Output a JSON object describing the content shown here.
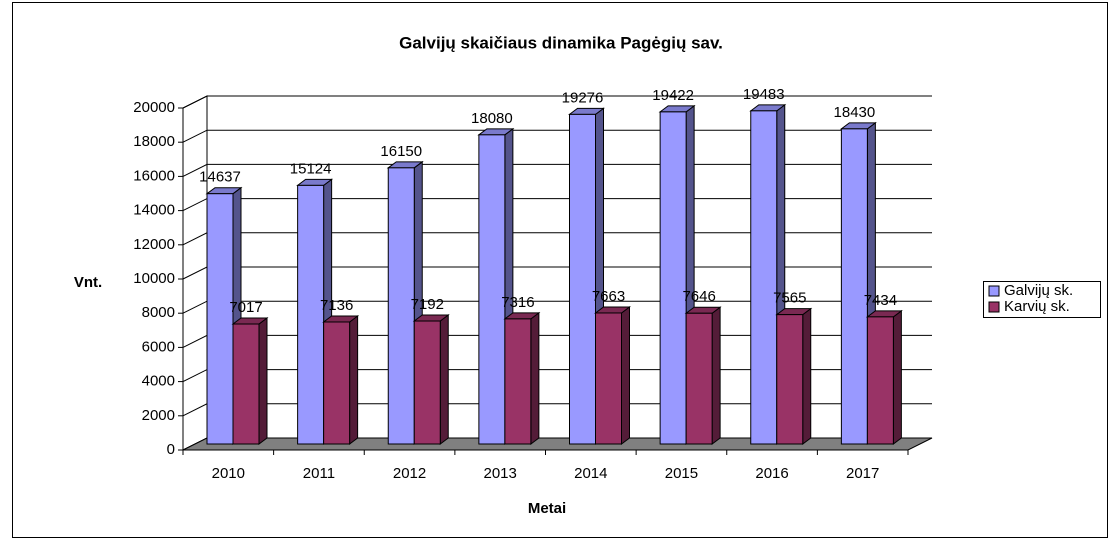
{
  "chart_data": {
    "type": "bar",
    "title": "Galvijų skaičiaus dinamika Pagėgių sav.",
    "x_label": "Metai",
    "y_label": "Vnt.",
    "categories": [
      "2010",
      "2011",
      "2012",
      "2013",
      "2014",
      "2015",
      "2016",
      "2017"
    ],
    "series": [
      {
        "name": "Galvijų sk.",
        "color": "#9999ff",
        "values": [
          14637,
          15124,
          16150,
          18080,
          19276,
          19422,
          19483,
          18430
        ]
      },
      {
        "name": "Karvių sk.",
        "color": "#993366",
        "values": [
          7017,
          7136,
          7192,
          7316,
          7663,
          7646,
          7565,
          7434
        ]
      }
    ],
    "ylim": [
      0,
      20000
    ],
    "yticks": [
      0,
      2000,
      4000,
      6000,
      8000,
      10000,
      12000,
      14000,
      16000,
      18000,
      20000
    ],
    "grid": true,
    "legend": "right"
  }
}
